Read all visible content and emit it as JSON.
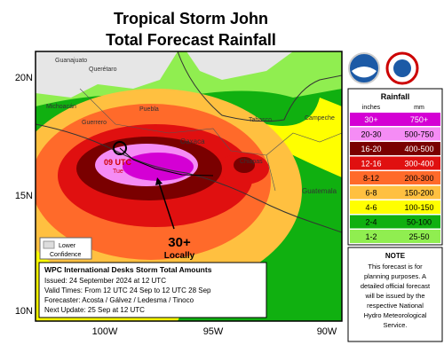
{
  "header": {
    "title": "Tropical Storm John",
    "subtitle": "Total Forecast Rainfall"
  },
  "axes": {
    "lat_labels": [
      "20N",
      "15N",
      "10N"
    ],
    "lon_labels": [
      "100W",
      "95W",
      "90W"
    ]
  },
  "places": [
    "Guanajuato",
    "Querétaro",
    "Michoacán",
    "Puebla",
    "Guerrero",
    "Oaxaca",
    "Tabasco",
    "Campeche",
    "Chiapas",
    "Guatemala"
  ],
  "storm": {
    "time": "09 UTC",
    "day": "Tue"
  },
  "annotation": {
    "amount": "30+",
    "note": "Locally"
  },
  "confidence_legend": {
    "line1": "Lower",
    "line2": "Confidence"
  },
  "info_box": {
    "title": "WPC International Desks Storm Total Amounts",
    "lines": [
      "Issued:  24 September 2024 at 12 UTC",
      "Valid Times:  From 12 UTC 24 Sep  to  12 UTC 28 Sep",
      "Forecaster:  Acosta / Gálvez / Ledesma / Tinoco",
      "Next Update: 25 Sep at 12 UTC"
    ]
  },
  "legend": {
    "title": "Rainfall",
    "unit_in": "inches",
    "unit_mm": "mm",
    "rows": [
      {
        "inches": "30+",
        "mm": "750+",
        "color": "#d400d4"
      },
      {
        "inches": "20-30",
        "mm": "500-750",
        "color": "#f58cf5"
      },
      {
        "inches": "16-20",
        "mm": "400-500",
        "color": "#7a0000"
      },
      {
        "inches": "12-16",
        "mm": "300-400",
        "color": "#e01010"
      },
      {
        "inches": "8-12",
        "mm": "200-300",
        "color": "#ff6a2a"
      },
      {
        "inches": "6-8",
        "mm": "150-200",
        "color": "#ffc040"
      },
      {
        "inches": "4-6",
        "mm": "100-150",
        "color": "#ffff00"
      },
      {
        "inches": "2-4",
        "mm": "50-100",
        "color": "#10b010"
      },
      {
        "inches": "1-2",
        "mm": "25-50",
        "color": "#90ee50"
      }
    ]
  },
  "note": {
    "title": "NOTE",
    "lines": [
      "This forecast is for",
      "planning purposes. A",
      "detailed official forecast",
      "will be issued by the",
      "respective National",
      "Hydro Meteorological",
      "Service."
    ]
  }
}
